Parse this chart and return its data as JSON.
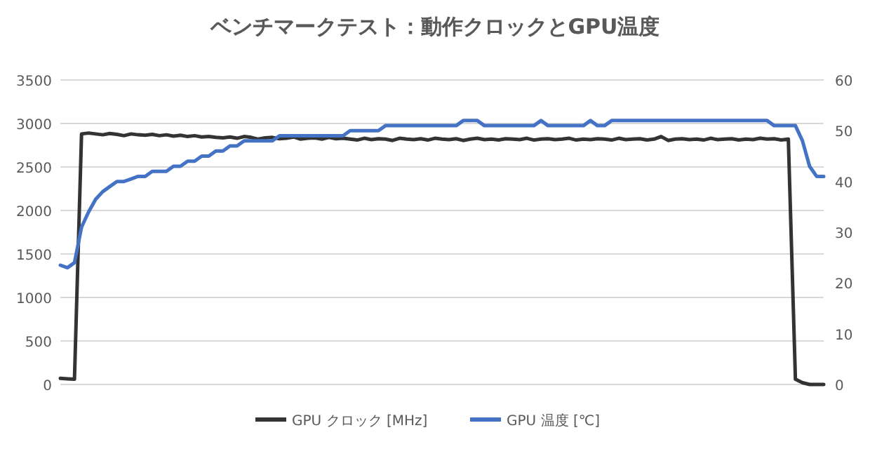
{
  "chart_data": {
    "type": "line",
    "title": "ベンチマークテスト：動作クロックとGPU温度",
    "categories": [
      null,
      null,
      null,
      null,
      null,
      null,
      null,
      null,
      null,
      null,
      null,
      null,
      null,
      null,
      null,
      null,
      null,
      null,
      null,
      null,
      null,
      null,
      null,
      null,
      null,
      null,
      null,
      null,
      null,
      null,
      null,
      null,
      null,
      null,
      null,
      null,
      null,
      null,
      null,
      null,
      null,
      null,
      null,
      null,
      null,
      null,
      null,
      null,
      null,
      null,
      null,
      null,
      null,
      null,
      null,
      null,
      null,
      null,
      null,
      null,
      null,
      null,
      null,
      null,
      null,
      null,
      null,
      null,
      null,
      null,
      null,
      null,
      null,
      null,
      null,
      null,
      null,
      null,
      null,
      null,
      null,
      null,
      null,
      null,
      null,
      null,
      null,
      null,
      null,
      null,
      null,
      null,
      null,
      null,
      null,
      null,
      null,
      null,
      null,
      null,
      null,
      null,
      null,
      null,
      null,
      null,
      null,
      null,
      null
    ],
    "series": [
      {
        "name": "GPU クロック [MHz]",
        "color": "#333333",
        "values": [
          70,
          65,
          60,
          2880,
          2890,
          2880,
          2870,
          2885,
          2875,
          2860,
          2880,
          2870,
          2865,
          2875,
          2860,
          2870,
          2855,
          2865,
          2850,
          2860,
          2845,
          2850,
          2840,
          2835,
          2845,
          2830,
          2850,
          2840,
          2820,
          2835,
          2840,
          2825,
          2830,
          2845,
          2820,
          2830,
          2835,
          2820,
          2840,
          2825,
          2830,
          2820,
          2810,
          2830,
          2815,
          2825,
          2820,
          2805,
          2830,
          2820,
          2815,
          2825,
          2810,
          2830,
          2820,
          2815,
          2825,
          2805,
          2820,
          2830,
          2815,
          2820,
          2810,
          2825,
          2820,
          2815,
          2830,
          2810,
          2820,
          2825,
          2815,
          2820,
          2830,
          2810,
          2820,
          2815,
          2825,
          2820,
          2810,
          2830,
          2815,
          2820,
          2825,
          2810,
          2820,
          2850,
          2805,
          2820,
          2825,
          2815,
          2820,
          2810,
          2830,
          2815,
          2820,
          2825,
          2810,
          2820,
          2815,
          2830,
          2820,
          2825,
          2810,
          2820,
          60,
          20,
          0,
          0,
          0
        ]
      },
      {
        "name": "GPU 温度 [℃]",
        "color": "#4472c4",
        "axis": "y2",
        "values": [
          23.5,
          23,
          24,
          31,
          34,
          36.5,
          38,
          39,
          40,
          40,
          40.5,
          41,
          41,
          42,
          42,
          42,
          43,
          43,
          44,
          44,
          45,
          45,
          46,
          46,
          47,
          47,
          48,
          48,
          48,
          48,
          48,
          49,
          49,
          49,
          49,
          49,
          49,
          49,
          49,
          49,
          49,
          50,
          50,
          50,
          50,
          50,
          51,
          51,
          51,
          51,
          51,
          51,
          51,
          51,
          51,
          51,
          51,
          52,
          52,
          52,
          51,
          51,
          51,
          51,
          51,
          51,
          51,
          51,
          52,
          51,
          51,
          51,
          51,
          51,
          51,
          52,
          51,
          51,
          52,
          52,
          52,
          52,
          52,
          52,
          52,
          52,
          52,
          52,
          52,
          52,
          52,
          52,
          52,
          52,
          52,
          52,
          52,
          52,
          52,
          52,
          52,
          51,
          51,
          51,
          51,
          48,
          43,
          41,
          41
        ]
      }
    ],
    "ylim": [
      0,
      3500
    ],
    "yticks": [
      0,
      500,
      1000,
      1500,
      2000,
      2500,
      3000,
      3500
    ],
    "y2lim": [
      0,
      60
    ],
    "y2ticks": [
      0,
      10,
      20,
      30,
      40,
      50,
      60
    ],
    "grid": "y",
    "legend": "bottom",
    "marker": "none",
    "line_style": "solid"
  }
}
